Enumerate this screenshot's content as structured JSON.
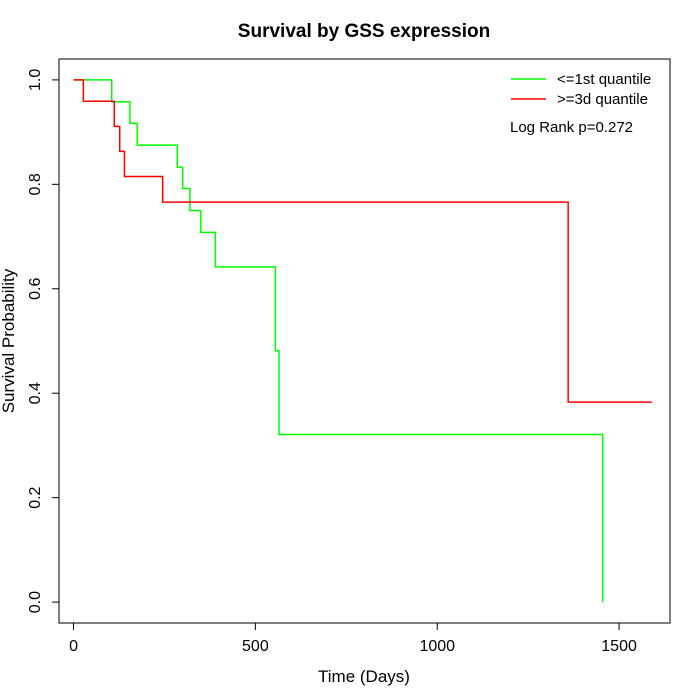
{
  "chart_data": {
    "type": "line",
    "step": true,
    "title": "Survival by GSS expression",
    "xlabel": "Time (Days)",
    "ylabel": "Survival Probability",
    "xlim": [
      -40,
      1640
    ],
    "ylim": [
      -0.04,
      1.04
    ],
    "xticks": [
      0,
      500,
      1000,
      1500
    ],
    "yticks": [
      0.0,
      0.2,
      0.4,
      0.6,
      0.8,
      1.0
    ],
    "xtick_labels": [
      "0",
      "500",
      "1000",
      "1500"
    ],
    "ytick_labels": [
      "0.0",
      "0.2",
      "0.4",
      "0.6",
      "0.8",
      "1.0"
    ],
    "grid": false,
    "legend_position": "top-right",
    "annotation": "Log Rank p=0.272",
    "series": [
      {
        "name": "<=1st quantile",
        "color": "#00ff00",
        "times": [
          0,
          105,
          155,
          175,
          285,
          300,
          320,
          350,
          390,
          555,
          565,
          1455,
          1455
        ],
        "survival": [
          1.0,
          0.958,
          0.917,
          0.875,
          0.833,
          0.792,
          0.75,
          0.708,
          0.642,
          0.481,
          0.321,
          0.321,
          0.0
        ]
      },
      {
        "name": ">=3d quantile",
        "color": "#ff0000",
        "times": [
          0,
          27,
          112,
          127,
          140,
          245,
          1360,
          1590
        ],
        "survival": [
          1.0,
          0.959,
          0.911,
          0.863,
          0.815,
          0.766,
          0.383,
          0.383
        ]
      }
    ]
  }
}
